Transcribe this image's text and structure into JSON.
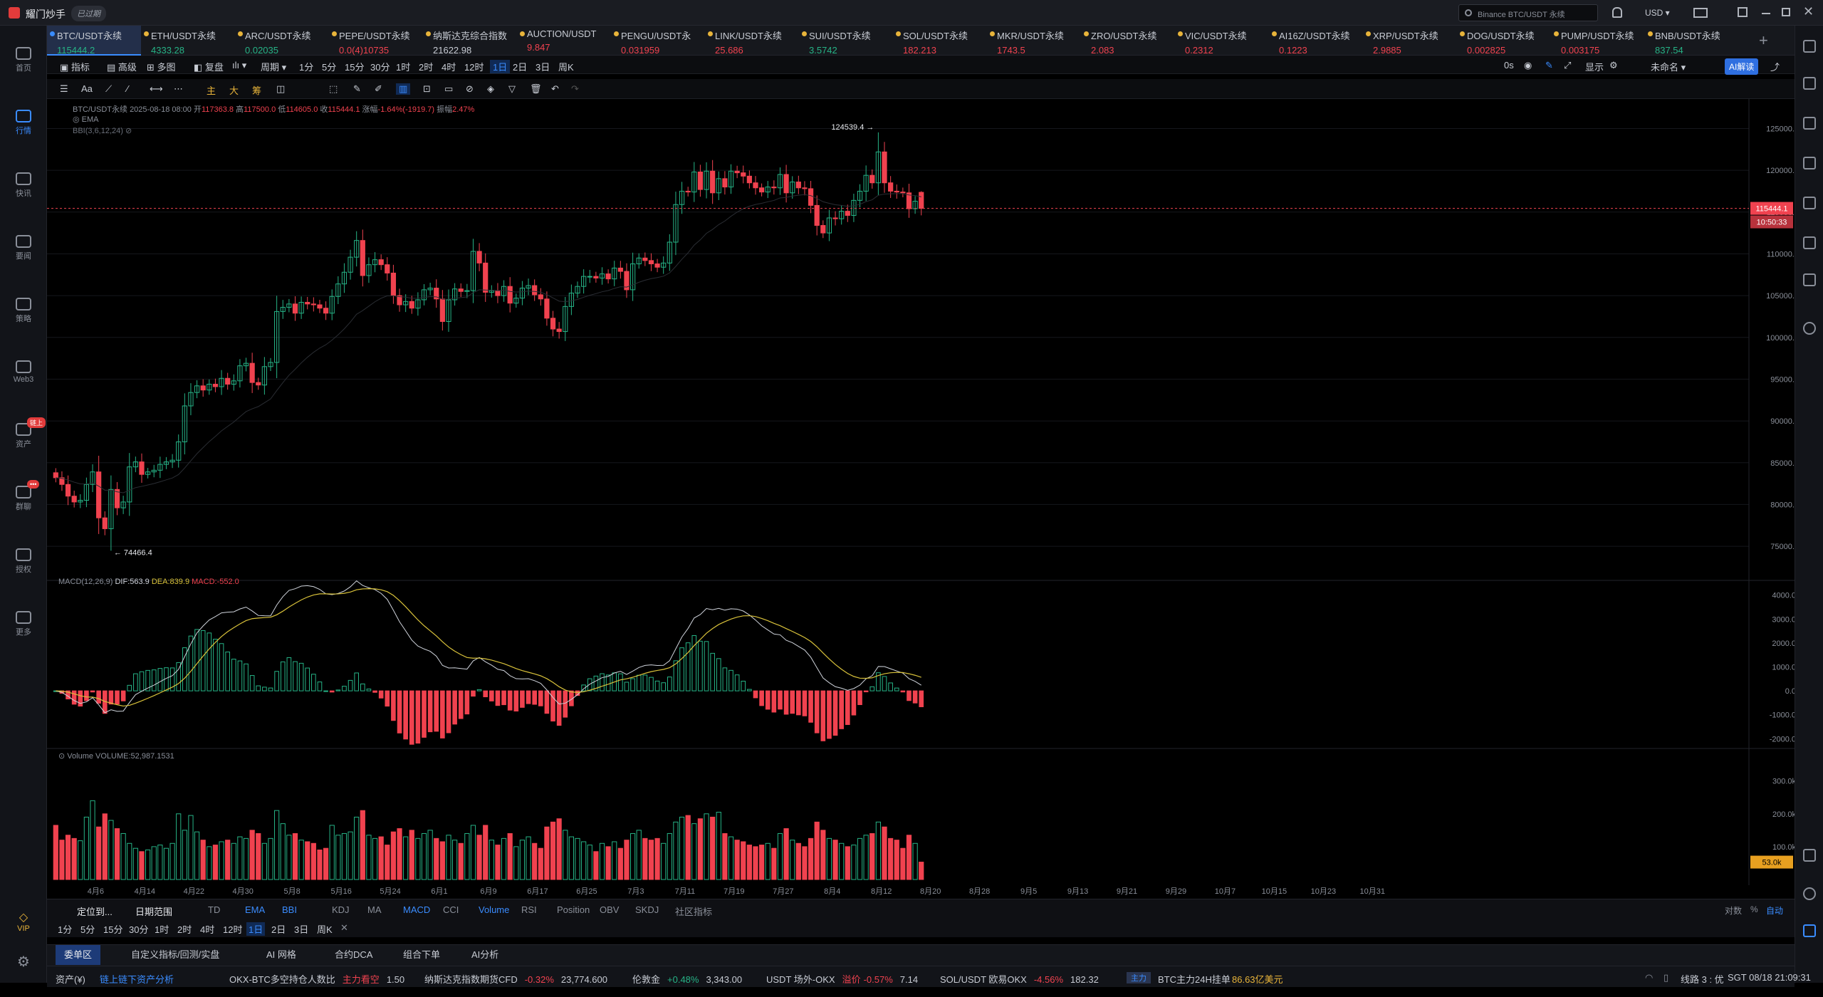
{
  "app": {
    "name": "耀门炒手",
    "badge": "已过期",
    "search_placeholder": "Binance BTC/USDT 永续",
    "currency": "USD"
  },
  "nav": [
    {
      "label": "首页",
      "icon": "home-icon"
    },
    {
      "label": "行情",
      "icon": "market-icon",
      "active": true
    },
    {
      "label": "快讯",
      "icon": "news-icon"
    },
    {
      "label": "要闻",
      "icon": "headline-icon"
    },
    {
      "label": "策略",
      "icon": "strategy-icon"
    },
    {
      "label": "Web3",
      "icon": "web3-icon"
    },
    {
      "label": "资产",
      "icon": "asset-icon",
      "badge": "链上"
    },
    {
      "label": "群聊",
      "icon": "chat-icon",
      "badge": "•••"
    },
    {
      "label": "授权",
      "icon": "auth-icon"
    },
    {
      "label": "更多",
      "icon": "more-icon"
    }
  ],
  "nav_bottom": {
    "vip": "VIP"
  },
  "tickers": [
    {
      "name": "BTC/USDT永续",
      "price": "115444.2",
      "dir": "up",
      "active": true
    },
    {
      "name": "ETH/USDT永续",
      "price": "4333.28",
      "dir": "up"
    },
    {
      "name": "ARC/USDT永续",
      "price": "0.02035",
      "dir": "up"
    },
    {
      "name": "PEPE/USDT永续",
      "price": "0.0(4)10735",
      "dir": "dn"
    },
    {
      "name": "纳斯达克综合指数",
      "price": "21622.98",
      "dir": "neu"
    },
    {
      "name": "AUCTION/USDT",
      "price": "9.847",
      "dir": "dn"
    },
    {
      "name": "PENGU/USDT永",
      "price": "0.031959",
      "dir": "dn"
    },
    {
      "name": "LINK/USDT永续",
      "price": "25.686",
      "dir": "dn"
    },
    {
      "name": "SUI/USDT永续",
      "price": "3.5742",
      "dir": "up"
    },
    {
      "name": "SOL/USDT永续",
      "price": "182.213",
      "dir": "dn"
    },
    {
      "name": "MKR/USDT永续",
      "price": "1743.5",
      "dir": "dn"
    },
    {
      "name": "ZRO/USDT永续",
      "price": "2.083",
      "dir": "dn"
    },
    {
      "name": "VIC/USDT永续",
      "price": "0.2312",
      "dir": "dn"
    },
    {
      "name": "AI16Z/USDT永续",
      "price": "0.1223",
      "dir": "dn"
    },
    {
      "name": "XRP/USDT永续",
      "price": "2.9885",
      "dir": "dn"
    },
    {
      "name": "DOG/USDT永续",
      "price": "0.002825",
      "dir": "dn"
    },
    {
      "name": "PUMP/USDT永续",
      "price": "0.003175",
      "dir": "dn"
    },
    {
      "name": "BNB/USDT永续",
      "price": "837.54",
      "dir": "up"
    }
  ],
  "toolbar1": {
    "items": [
      "指标",
      "高级",
      "多图",
      "复盘",
      "周期"
    ],
    "periods": [
      "1分",
      "5分",
      "15分",
      "30分",
      "1时",
      "2时",
      "4时",
      "12时",
      "1日",
      "2日",
      "3日",
      "周K"
    ],
    "active_period": "1日",
    "right": [
      "0s",
      "显示",
      "未命名",
      "AI解读"
    ]
  },
  "toolbar2": {
    "chips": [
      "主",
      "大",
      "筹"
    ]
  },
  "chart_info": {
    "symbol": "BTC/USDT永续",
    "date": "2025-08-18 08:00",
    "open_label": "开",
    "open": "117363.8",
    "high_label": "高",
    "high": "117500.0",
    "low_label": "低",
    "low": "114605.0",
    "close_label": "收",
    "close": "115444.1",
    "chg_label": "涨幅",
    "chg": "-1.64%(-1919.7)",
    "amp_label": "振幅",
    "amp": "2.47%",
    "ema_label": "EMA",
    "bbi_label": "BBI(3,6,12,24)",
    "high_marker": "124539.4",
    "low_marker": "74466.4",
    "last_price_tag": "115444.1",
    "countdown_tag": "10:50:33"
  },
  "macd_info": {
    "label": "MACD(12,26,9)",
    "dif": "DIF:563.9",
    "dea": "DEA:839.9",
    "macd": "MACD:-552.0"
  },
  "vol_info": {
    "label": "Volume",
    "value": "VOLUME:52,987.1531",
    "tag": "53.0k"
  },
  "chart_data": [
    {
      "type": "candlestick",
      "title": "BTC/USDT永续",
      "interval": "1日",
      "x_ticks": [
        "4月6",
        "4月14",
        "4月22",
        "4月30",
        "5月8",
        "5月16",
        "5月24",
        "6月1",
        "6月9",
        "6月17",
        "6月25",
        "7月3",
        "7月11",
        "7月19",
        "7月27",
        "8月4",
        "8月12",
        "8月20",
        "8月28",
        "9月5",
        "9月13",
        "9月21",
        "9月29",
        "10月7",
        "10月15",
        "10月23",
        "10月31"
      ],
      "y_ticks": [
        75000,
        80000,
        85000,
        90000,
        95000,
        100000,
        105000,
        110000,
        115000,
        120000,
        125000
      ],
      "ylim": [
        71000,
        127000
      ],
      "first_date": "3月30",
      "last_date": "8月18",
      "closes": [
        83200,
        82400,
        81000,
        80300,
        80500,
        82400,
        83900,
        78400,
        77100,
        81800,
        79600,
        80300,
        84500,
        85100,
        83600,
        83900,
        84100,
        84800,
        85100,
        85300,
        87500,
        91800,
        93400,
        94200,
        93700,
        94400,
        94100,
        95100,
        94400,
        94800,
        96600,
        96900,
        94600,
        94300,
        96500,
        97000,
        103100,
        103600,
        104000,
        102900,
        104200,
        104000,
        103900,
        103500,
        102900,
        104900,
        106400,
        107800,
        109600,
        111600,
        107400,
        108700,
        109300,
        108700,
        107700,
        105000,
        103900,
        104300,
        103500,
        104500,
        105700,
        105900,
        104600,
        101900,
        104500,
        105800,
        105500,
        105600,
        110300,
        108900,
        105400,
        105600,
        105000,
        106100,
        104100,
        104700,
        105900,
        106200,
        105100,
        104600,
        102300,
        101000,
        100700,
        103700,
        105300,
        106100,
        107300,
        107300,
        107100,
        107600,
        107000,
        108300,
        107900,
        105700,
        108800,
        109500,
        109200,
        108800,
        108400,
        108900,
        111400,
        115900,
        117500,
        117400,
        119800,
        117700,
        119900,
        117300,
        119000,
        118000,
        119900,
        119700,
        119300,
        118500,
        117900,
        117400,
        118000,
        117900,
        119500,
        117300,
        118600,
        117900,
        117800,
        115800,
        113400,
        112500,
        114300,
        114200,
        115100,
        114600,
        116400,
        117500,
        119400,
        118500,
        122200,
        118500,
        117500,
        117400,
        117300,
        115400,
        116300,
        115444
      ]
    },
    {
      "type": "bar+line",
      "title": "MACD(12,26,9)",
      "y_ticks": [
        -2000,
        -1000,
        0,
        1000,
        2000,
        3000,
        4000
      ],
      "ylim": [
        -2200,
        4200
      ],
      "series": [
        {
          "name": "DIF",
          "last": 563.9
        },
        {
          "name": "DEA",
          "last": 839.9
        },
        {
          "name": "MACD",
          "last": -552.0
        }
      ]
    },
    {
      "type": "bar",
      "title": "Volume",
      "y_ticks": [
        "100.0k",
        "200.0k",
        "300.0k"
      ],
      "ylim": [
        0,
        360
      ],
      "unit": "k",
      "values": [
        165,
        120,
        135,
        125,
        118,
        190,
        240,
        160,
        200,
        180,
        155,
        140,
        110,
        95,
        85,
        90,
        100,
        105,
        95,
        110,
        200,
        150,
        195,
        145,
        120,
        100,
        105,
        115,
        120,
        110,
        130,
        125,
        150,
        140,
        110,
        125,
        210,
        170,
        135,
        140,
        120,
        115,
        110,
        90,
        95,
        165,
        135,
        140,
        145,
        190,
        210,
        135,
        125,
        130,
        105,
        145,
        155,
        130,
        150,
        125,
        140,
        150,
        125,
        115,
        135,
        120,
        110,
        140,
        165,
        135,
        165,
        120,
        105,
        125,
        140,
        100,
        120,
        130,
        110,
        95,
        160,
        175,
        185,
        150,
        130,
        125,
        115,
        105,
        85,
        110,
        100,
        115,
        95,
        120,
        140,
        150,
        125,
        120,
        125,
        110,
        140,
        175,
        190,
        195,
        170,
        185,
        200,
        190,
        205,
        140,
        130,
        120,
        115,
        105,
        100,
        105,
        110,
        95,
        140,
        155,
        120,
        110,
        100,
        125,
        175,
        150,
        125,
        120,
        110,
        100,
        105,
        125,
        135,
        140,
        175,
        160,
        125,
        120,
        95,
        135,
        110,
        53
      ]
    }
  ],
  "indicator_tabs": {
    "left": [
      "定位到...",
      "日期范围"
    ],
    "main": [
      "TD",
      "EMA",
      "BBI"
    ],
    "sub": [
      "KDJ",
      "MA",
      "MACD",
      "CCI",
      "Volume",
      "RSI",
      "Position",
      "OBV",
      "SKDJ",
      "社区指标"
    ],
    "right": [
      "对数",
      "%",
      "自动"
    ]
  },
  "interval_tabs": [
    "1分",
    "5分",
    "15分",
    "30分",
    "1时",
    "2时",
    "4时",
    "12时",
    "1日",
    "2日",
    "3日",
    "周K"
  ],
  "panel_tabs": [
    "委单区",
    "自定义指标/回测/实盘",
    "AI 网格",
    "合约DCA",
    "组合下单",
    "AI分析"
  ],
  "status": {
    "asset_label": "资产(¥)",
    "asset_link": "链上链下资产分析",
    "items": [
      {
        "name": "OKX-BTC多空持仓人数比",
        "tag": "主力看空",
        "value": "1.50"
      },
      {
        "name": "纳斯达克指数期货CFD",
        "chg": "-0.32%",
        "value": "23,774.600"
      },
      {
        "name": "伦敦金",
        "chg": "+0.48%",
        "value": "3,343.00"
      },
      {
        "name": "USDT 场外-OKX",
        "chg_label": "溢价",
        "chg": "-0.57%",
        "value": "7.14"
      },
      {
        "name": "SOL/USDT 欧易OKX",
        "chg": "-4.56%",
        "value": "182.32"
      }
    ],
    "main_tag": "主力",
    "btc_text": "BTC主力24H挂单",
    "btc_value": "86.63亿美元",
    "line": "线路 3 : 优",
    "time": "SGT 08/18 21:09:31"
  },
  "colors": {
    "up": "#26b386",
    "down": "#f0424f",
    "accent": "#3a8cff",
    "ema": "#d9c23a",
    "dif": "#d0d4dc"
  }
}
